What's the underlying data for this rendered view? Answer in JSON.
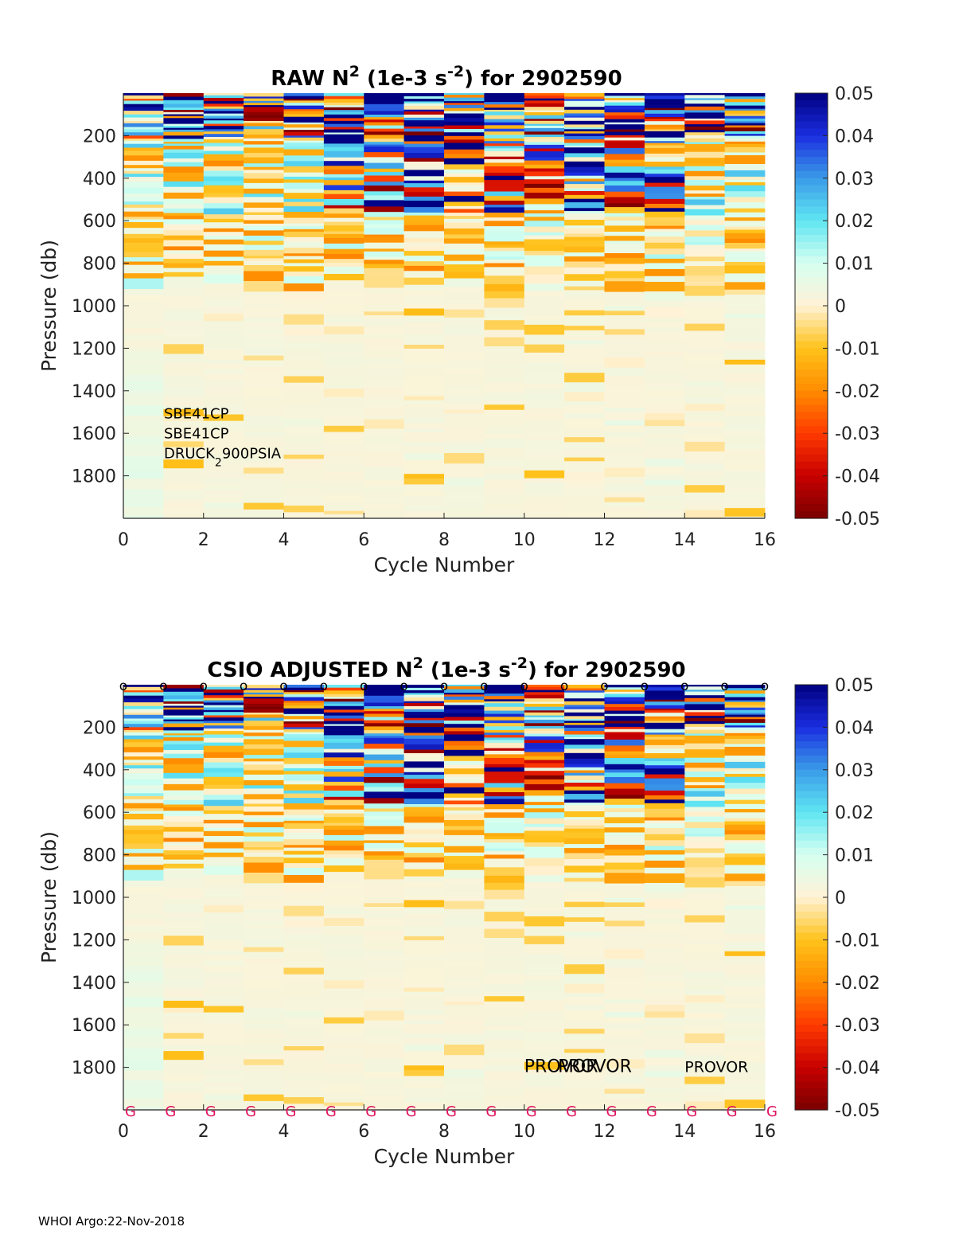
{
  "colorbar": {
    "ticks": [
      "0.05",
      "0.04",
      "0.03",
      "0.02",
      "0.01",
      "0",
      "-0.01",
      "-0.02",
      "-0.03",
      "-0.04",
      "-0.05"
    ],
    "colors": [
      "#7a0000",
      "#c80000",
      "#ff3a00",
      "#ff8c00",
      "#ffc21a",
      "#fff2d6",
      "#d6fff0",
      "#5fe6f2",
      "#3a9be8",
      "#1a2de0",
      "#000080"
    ],
    "range": [
      -0.05,
      0.05
    ]
  },
  "footer": "WHOI Argo:22-Nov-2018",
  "chart_data": [
    {
      "type": "heatmap",
      "id": "raw",
      "title": {
        "prefix": "RAW N",
        "sup": "2",
        "mid": " (1e-3 s",
        "sup2": "-2",
        "suffix": ") for 2902590"
      },
      "xlabel": "Cycle Number",
      "ylabel": "Pressure (db)",
      "xlim": [
        0,
        16
      ],
      "ylim": [
        0,
        2000
      ],
      "y_reversed": true,
      "xticks": [
        "0",
        "2",
        "4",
        "6",
        "8",
        "10",
        "12",
        "14",
        "16"
      ],
      "yticks": [
        "200",
        "400",
        "600",
        "800",
        "1000",
        "1200",
        "1400",
        "1600",
        "1800"
      ],
      "ncols": 16,
      "sensor_labels": [
        "SBE41CP",
        "SBE41CP"
      ],
      "pressure_sensor": {
        "a": "DRUCK",
        "sub": "2",
        "b": "900PSIA"
      },
      "seed": 73,
      "top_markers": null,
      "bottom_markers": null,
      "platform_labels": []
    },
    {
      "type": "heatmap",
      "id": "adj",
      "title": {
        "prefix": "CSIO  ADJUSTED N",
        "sup": "2",
        "mid": " (1e-3 s",
        "sup2": "-2",
        "suffix": ") for 2902590"
      },
      "xlabel": "Cycle Number",
      "ylabel": "Pressure (db)",
      "xlim": [
        0,
        16
      ],
      "ylim": [
        0,
        2000
      ],
      "y_reversed": true,
      "xticks": [
        "0",
        "2",
        "4",
        "6",
        "8",
        "10",
        "12",
        "14",
        "16"
      ],
      "yticks": [
        "200",
        "400",
        "600",
        "800",
        "1000",
        "1200",
        "1400",
        "1600",
        "1800"
      ],
      "ncols": 16,
      "sensor_labels": [],
      "pressure_sensor": null,
      "seed": 73,
      "top_markers": [
        "o",
        "o",
        "o",
        "o",
        "o",
        "o",
        "o",
        "o",
        "o",
        "o",
        "o",
        "o",
        "o",
        "o",
        "o",
        "o",
        "o"
      ],
      "bottom_markers": [
        "G",
        "G",
        "G",
        "G",
        "G",
        "G",
        "G",
        "G",
        "G",
        "G",
        "G",
        "G",
        "G",
        "G",
        "G",
        "G",
        "G"
      ],
      "platform_labels": [
        {
          "text": "PROVOR",
          "cycle": 10
        },
        {
          "text": "PROVOR",
          "cycle": 11
        },
        {
          "text": "PROVOR",
          "cycle": 14
        }
      ]
    }
  ]
}
